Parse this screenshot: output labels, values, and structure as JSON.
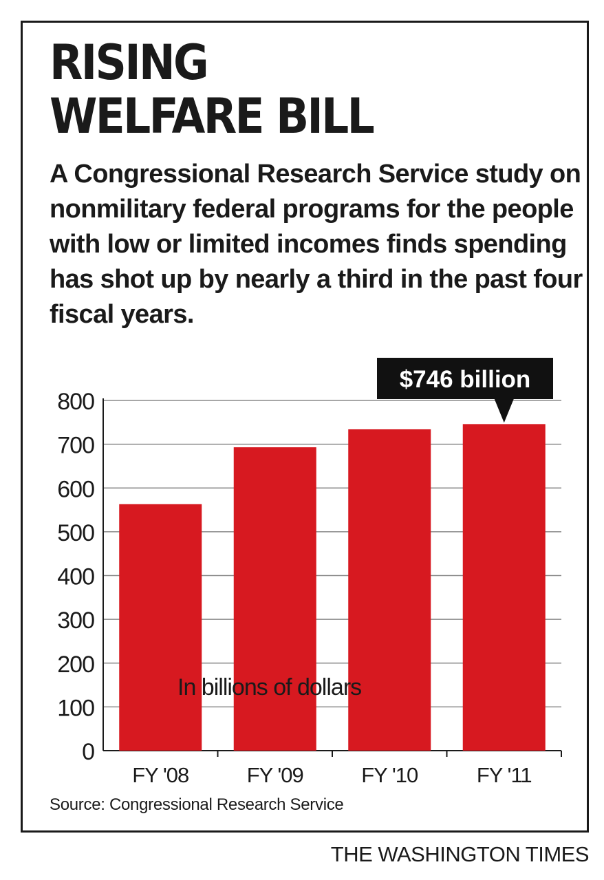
{
  "title_line1": "RISING",
  "title_line2": "WELFARE BILL",
  "subtitle": "A Congressional Research Service study on nonmilitary federal programs for the people with low or limited incomes finds spending has shot up by nearly a third in the past four fiscal years.",
  "source": "Source: Congressional Research Service",
  "publisher": "THE WASHINGTON TIMES",
  "colors": {
    "bar": "#d71920",
    "text": "#1a1a1a",
    "grid": "#8a8a8a",
    "callout": "#111111"
  },
  "chart_data": {
    "type": "bar",
    "title": "RISING WELFARE BILL",
    "categories": [
      "FY '08",
      "FY '09",
      "FY '10",
      "FY '11"
    ],
    "values": [
      563,
      693,
      734,
      746
    ],
    "unit_label": "In billions of dollars",
    "ylim": [
      0,
      800
    ],
    "yticks": [
      0,
      100,
      200,
      300,
      400,
      500,
      600,
      700,
      800
    ],
    "grid": true,
    "callout": {
      "category": "FY '11",
      "label": "$746 billion"
    }
  }
}
